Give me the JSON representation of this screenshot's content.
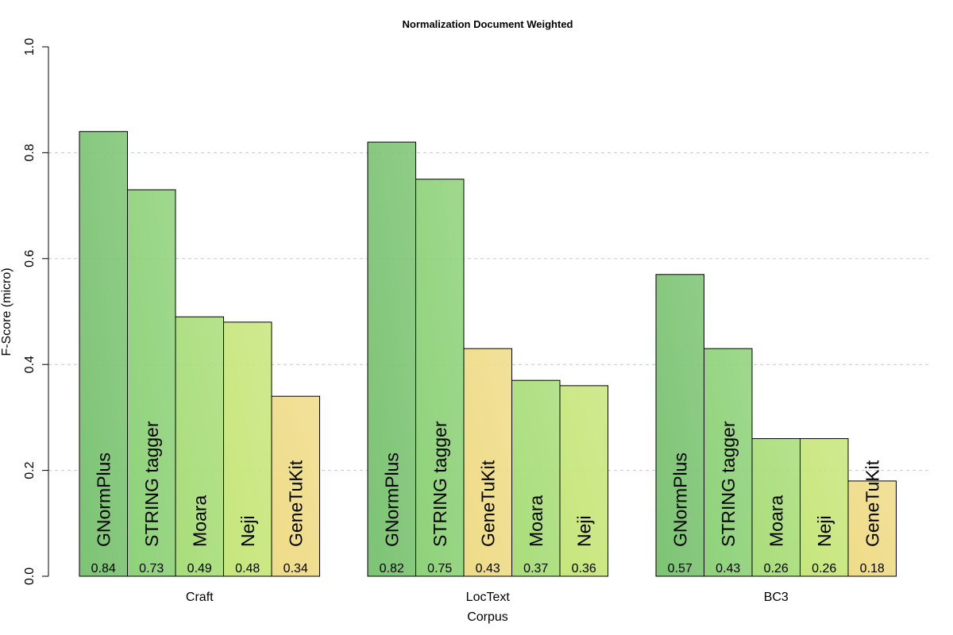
{
  "chart_data": {
    "type": "bar",
    "title": "Normalization Document Weighted",
    "xlabel": "Corpus",
    "ylabel": "F-Score (micro)",
    "ylim": [
      0,
      1.0
    ],
    "yticks": [
      "0.0",
      "0.2",
      "0.4",
      "0.6",
      "0.8",
      "1.0"
    ],
    "grid": "horizontal dashed",
    "groups": [
      {
        "category": "Craft",
        "bars": [
          {
            "name": "GNormPlus",
            "value": 0.84,
            "label": "0.84"
          },
          {
            "name": "STRING tagger",
            "value": 0.73,
            "label": "0.73"
          },
          {
            "name": "Moara",
            "value": 0.49,
            "label": "0.49"
          },
          {
            "name": "Neji",
            "value": 0.48,
            "label": "0.48"
          },
          {
            "name": "GeneTuKit",
            "value": 0.34,
            "label": "0.34"
          }
        ]
      },
      {
        "category": "LocText",
        "bars": [
          {
            "name": "GNormPlus",
            "value": 0.82,
            "label": "0.82"
          },
          {
            "name": "STRING tagger",
            "value": 0.75,
            "label": "0.75"
          },
          {
            "name": "GeneTuKit",
            "value": 0.43,
            "label": "0.43"
          },
          {
            "name": "Moara",
            "value": 0.37,
            "label": "0.37"
          },
          {
            "name": "Neji",
            "value": 0.36,
            "label": "0.36"
          }
        ]
      },
      {
        "category": "BC3",
        "bars": [
          {
            "name": "GNormPlus",
            "value": 0.57,
            "label": "0.57"
          },
          {
            "name": "STRING tagger",
            "value": 0.43,
            "label": "0.43"
          },
          {
            "name": "Moara",
            "value": 0.26,
            "label": "0.26"
          },
          {
            "name": "Neji",
            "value": 0.26,
            "label": "0.26"
          },
          {
            "name": "GeneTuKit",
            "value": 0.18,
            "label": "0.18"
          }
        ]
      }
    ],
    "colors": {
      "GNormPlus": "#7dc474",
      "STRING tagger": "#8fd27a",
      "Moara": "#a9dd7a",
      "Neji": "#c7e67c",
      "GeneTuKit": "#efdc88"
    }
  }
}
